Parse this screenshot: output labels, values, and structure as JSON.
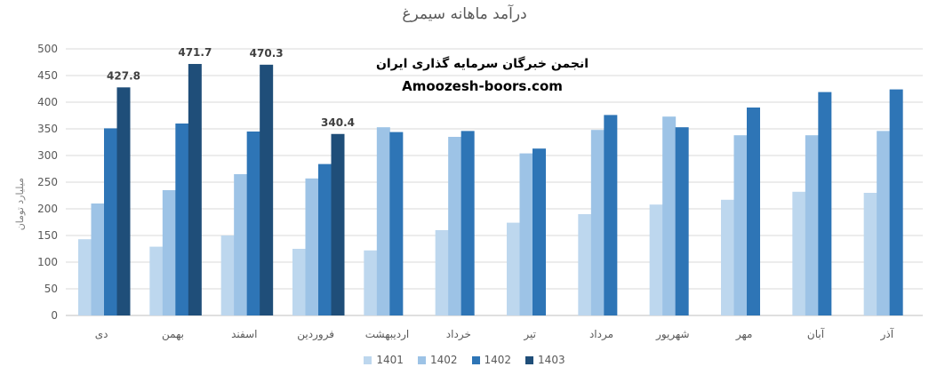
{
  "chart_data": {
    "type": "bar",
    "title": "درآمد ماهانه سیمرغ",
    "ylabel": "میلیارد تومان",
    "xlabel": "",
    "ylim": [
      0,
      500
    ],
    "yticks": [
      0,
      50,
      100,
      150,
      200,
      250,
      300,
      350,
      400,
      450,
      500
    ],
    "gridlines": true,
    "legend_position": "bottom",
    "categories": [
      "دی",
      "بهمن",
      "اسفند",
      "فروردین",
      "اردیبهشت",
      "خرداد",
      "تیر",
      "مرداد",
      "شهریور",
      "مهر",
      "آبان",
      "آذر"
    ],
    "series": [
      {
        "name": "1401",
        "color": "#bdd7ee",
        "values": [
          143,
          129,
          150,
          125,
          122,
          160,
          174,
          190,
          208,
          217,
          232,
          230
        ]
      },
      {
        "name": "1402",
        "color": "#9dc3e6",
        "values": [
          210,
          235,
          265,
          257,
          353,
          335,
          304,
          348,
          373,
          338,
          338,
          346
        ]
      },
      {
        "name": "1402",
        "color": "#2e75b6",
        "values": [
          351,
          360,
          345,
          284,
          344,
          346,
          313,
          376,
          353,
          390,
          419,
          424
        ]
      },
      {
        "name": "1403",
        "color": "#1f4e79",
        "values": [
          427.8,
          471.7,
          470.3,
          340.4,
          null,
          null,
          null,
          null,
          null,
          null,
          null,
          null
        ]
      }
    ],
    "data_labels": [
      {
        "series": 3,
        "category": 0,
        "text": "427.8"
      },
      {
        "series": 3,
        "category": 1,
        "text": "471.7"
      },
      {
        "series": 3,
        "category": 2,
        "text": "470.3"
      },
      {
        "series": 3,
        "category": 3,
        "text": "340.4"
      }
    ]
  },
  "watermark": {
    "line1": "انجمن خبرگان سرمایه گذاری ایران",
    "line2": "Amoozesh-boors.com"
  }
}
